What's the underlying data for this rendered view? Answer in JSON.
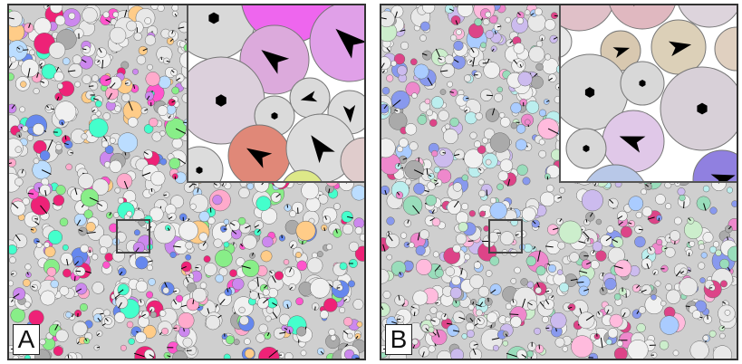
{
  "panels": [
    {
      "label": "A"
    },
    {
      "label": "B"
    }
  ],
  "palette": {
    "background_disc": "#d4d4d4",
    "outline": "#666666",
    "arrow": "#000000",
    "colors_A": [
      "#e8e8e8",
      "#f0f0f0",
      "#ff55cc",
      "#ee2277",
      "#44ffcc",
      "#88ee88",
      "#ffcc88",
      "#6688ee",
      "#cc88ee",
      "#ffaacc",
      "#aaaaaa",
      "#bbddff"
    ],
    "colors_B": [
      "#e8e8e8",
      "#f0f0f0",
      "#ee88cc",
      "#99ddbb",
      "#aaccff",
      "#ffbbdd",
      "#cceecc",
      "#dd4488",
      "#8899ee",
      "#ccbbee",
      "#bbeeee",
      "#aaaaaa"
    ]
  },
  "insets": [
    {
      "discs": [
        {
          "color": "#d9d9d9",
          "marker": "hexagon"
        },
        {
          "color": "#ee66ee",
          "marker": "none"
        },
        {
          "color": "#dcaadc",
          "marker": "arrow"
        },
        {
          "color": "#e0a0e8",
          "marker": "arrow"
        },
        {
          "color": "#dcd0dc",
          "marker": "hexagon"
        },
        {
          "color": "#dadada",
          "marker": "hexagon"
        },
        {
          "color": "#dadada",
          "marker": "arrow"
        },
        {
          "color": "#dcdcdc",
          "marker": "arrow"
        },
        {
          "color": "#e08878",
          "marker": "arrow"
        },
        {
          "color": "#dcdcdc",
          "marker": "arrow"
        },
        {
          "color": "#e0cccc",
          "marker": "none"
        },
        {
          "color": "#dcdcdc",
          "marker": "hexagon"
        },
        {
          "color": "#dde888",
          "marker": "none"
        }
      ]
    },
    {
      "discs": [
        {
          "color": "#e0c0c8",
          "marker": "none"
        },
        {
          "color": "#e0b8c0",
          "marker": "arrow"
        },
        {
          "color": "#ddd4dc",
          "marker": "none"
        },
        {
          "color": "#d8c8b0",
          "marker": "arrow"
        },
        {
          "color": "#dcd0b8",
          "marker": "arrow"
        },
        {
          "color": "#e0d0c0",
          "marker": "none"
        },
        {
          "color": "#d8d8d8",
          "marker": "hexagon"
        },
        {
          "color": "#d8d8d8",
          "marker": "hexagon"
        },
        {
          "color": "#d8d0d8",
          "marker": "hexagon"
        },
        {
          "color": "#e0c8e8",
          "marker": "arrow"
        },
        {
          "color": "#d8d8d8",
          "marker": "hexagon"
        },
        {
          "color": "#9080e0",
          "marker": "arrow"
        },
        {
          "color": "#b8c8e8",
          "marker": "none"
        },
        {
          "color": "#e8e8e8",
          "marker": "none"
        }
      ]
    }
  ]
}
